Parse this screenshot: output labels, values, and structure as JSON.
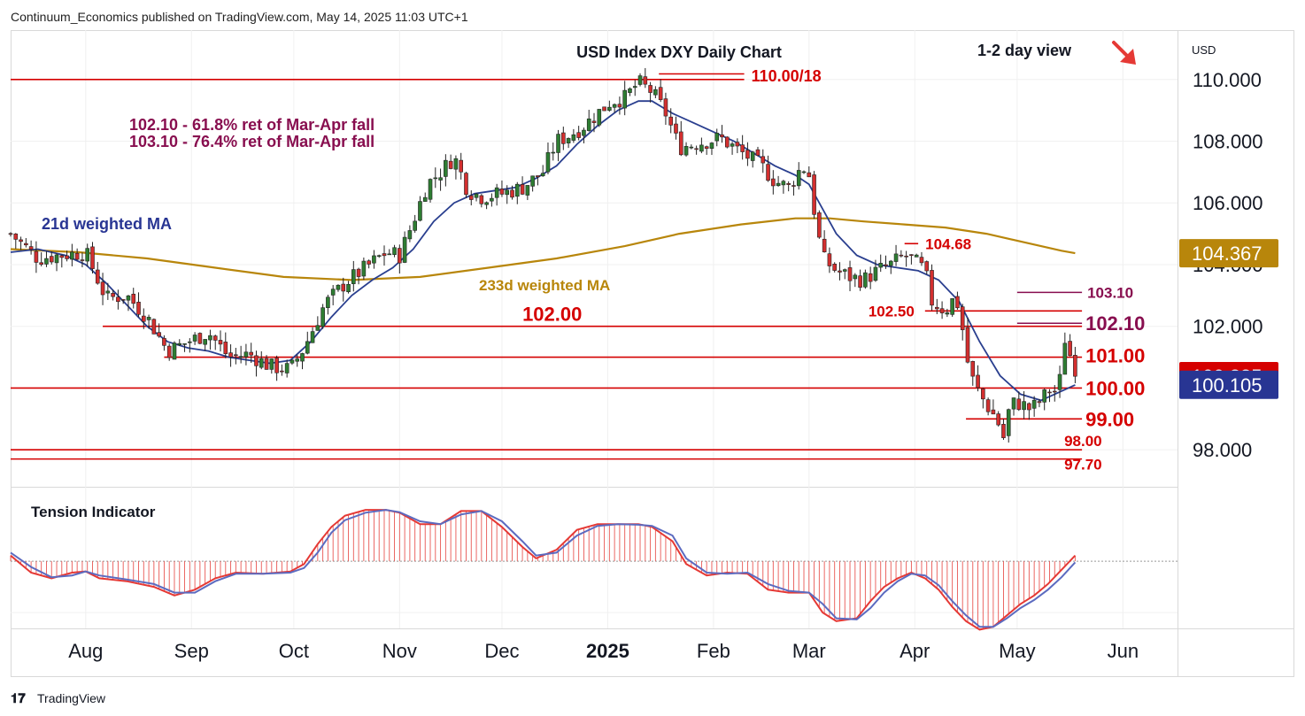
{
  "header": {
    "publisher": "Continuum_Economics published on TradingView.com, May 14, 2025 11:03 UTC+1"
  },
  "footer": {
    "brand": "TradingView"
  },
  "colors": {
    "up": "#2e7d32",
    "down": "#d32f2f",
    "level_line": "#d50000",
    "ret_line": "#880e4f",
    "ma21": "#2a3f8f",
    "ma233": "#b8860b",
    "tension_red": "#e53935",
    "tension_blue": "#5c6bc0",
    "price_tag_red": "#d50000",
    "price_tag_navy": "#283593",
    "price_tag_gold": "#b8860b"
  },
  "chart_data": {
    "type": "candlestick",
    "title": "USD Index DXY Daily Chart",
    "view_label": "1-2 day view",
    "view_arrow": "down-right-arrow",
    "currency": "USD",
    "y_ticks": [
      "110.000",
      "108.000",
      "106.000",
      "104.000",
      "102.000",
      "98.000"
    ],
    "y_tick_values": [
      110,
      108,
      106,
      104,
      102,
      98
    ],
    "ylim": [
      96.8,
      111.6
    ],
    "x_labels": [
      "Aug",
      "Sep",
      "Oct",
      "Nov",
      "Dec",
      "2025",
      "Feb",
      "Mar",
      "Apr",
      "May",
      "Jun"
    ],
    "x_label_days": [
      22,
      53,
      83,
      114,
      144,
      175,
      206,
      234,
      265,
      295,
      326
    ],
    "x_domain_days": [
      0,
      342
    ],
    "price_tags": [
      {
        "text": "104.367",
        "value": 104.367,
        "kind": "gold"
      },
      {
        "text": "100.385",
        "value": 100.385,
        "kind": "red"
      },
      {
        "text": "100.105",
        "value": 100.105,
        "kind": "navy"
      }
    ],
    "levels": [
      {
        "label": "110.00/18",
        "value": 110.0,
        "x_from": 0,
        "x_to": 215
      },
      {
        "label": "104.68",
        "value": 104.68,
        "x_from": 262,
        "x_to": 266
      },
      {
        "label": "103.10",
        "value": 103.1,
        "x_from": 295,
        "x_to": 314
      },
      {
        "label": "102.50",
        "value": 102.5,
        "x_from": 268,
        "x_to": 314
      },
      {
        "label": "102.10",
        "value": 102.1,
        "x_from": 295,
        "x_to": 314
      },
      {
        "label": "102.00",
        "value": 102.0,
        "x_from": 27,
        "x_to": 314
      },
      {
        "label": "101.00",
        "value": 101.0,
        "x_from": 45,
        "x_to": 314
      },
      {
        "label": "100.00",
        "value": 100.0,
        "x_from": 0,
        "x_to": 314
      },
      {
        "label": "99.00",
        "value": 99.0,
        "x_from": 280,
        "x_to": 314
      },
      {
        "label": "98.00",
        "value": 98.0,
        "x_from": 0,
        "x_to": 314
      },
      {
        "label": "97.70",
        "value": 97.7,
        "x_from": 0,
        "x_to": 314
      }
    ],
    "annotations": [
      "102.10 - 61.8% ret of Mar-Apr fall",
      "103.10 - 76.4% ret of Mar-Apr fall"
    ],
    "ma_labels": {
      "ma21": "21d weighted MA",
      "ma233": "233d weighted MA"
    },
    "close_path": [
      [
        0,
        105.0
      ],
      [
        8,
        104.2
      ],
      [
        14,
        104.3
      ],
      [
        22,
        104.4
      ],
      [
        28,
        102.9
      ],
      [
        34,
        103.0
      ],
      [
        40,
        102.3
      ],
      [
        46,
        101.2
      ],
      [
        52,
        101.5
      ],
      [
        58,
        101.8
      ],
      [
        64,
        101.0
      ],
      [
        70,
        101.1
      ],
      [
        76,
        100.7
      ],
      [
        82,
        100.6
      ],
      [
        86,
        101.3
      ],
      [
        92,
        102.7
      ],
      [
        98,
        103.4
      ],
      [
        104,
        103.9
      ],
      [
        110,
        104.4
      ],
      [
        114,
        104.3
      ],
      [
        118,
        105.4
      ],
      [
        122,
        106.6
      ],
      [
        126,
        107.0
      ],
      [
        130,
        107.5
      ],
      [
        134,
        106.4
      ],
      [
        138,
        106.2
      ],
      [
        144,
        106.3
      ],
      [
        150,
        106.5
      ],
      [
        156,
        107.0
      ],
      [
        160,
        108.0
      ],
      [
        164,
        108.2
      ],
      [
        168,
        108.5
      ],
      [
        172,
        108.9
      ],
      [
        176,
        109.3
      ],
      [
        180,
        109.4
      ],
      [
        184,
        109.9
      ],
      [
        188,
        109.6
      ],
      [
        192,
        108.9
      ],
      [
        196,
        107.8
      ],
      [
        200,
        107.9
      ],
      [
        204,
        108.0
      ],
      [
        208,
        108.1
      ],
      [
        212,
        107.8
      ],
      [
        216,
        107.5
      ],
      [
        220,
        107.2
      ],
      [
        224,
        106.7
      ],
      [
        228,
        106.5
      ],
      [
        232,
        107.2
      ],
      [
        234,
        106.9
      ],
      [
        236,
        105.4
      ],
      [
        238,
        104.2
      ],
      [
        242,
        103.8
      ],
      [
        246,
        103.6
      ],
      [
        250,
        103.5
      ],
      [
        254,
        103.8
      ],
      [
        258,
        104.0
      ],
      [
        262,
        104.3
      ],
      [
        265,
        104.1
      ],
      [
        268,
        103.8
      ],
      [
        270,
        102.8
      ],
      [
        274,
        102.5
      ],
      [
        277,
        103.0
      ],
      [
        279,
        101.9
      ],
      [
        281,
        100.5
      ],
      [
        284,
        99.8
      ],
      [
        287,
        99.3
      ],
      [
        289,
        99.0
      ],
      [
        291,
        98.4
      ],
      [
        293,
        99.5
      ],
      [
        296,
        99.5
      ],
      [
        299,
        99.3
      ],
      [
        302,
        99.6
      ],
      [
        305,
        100.0
      ],
      [
        307,
        99.8
      ],
      [
        309,
        101.6
      ],
      [
        311,
        100.9
      ],
      [
        312,
        100.38
      ]
    ],
    "ma21_path": [
      [
        0,
        104.4
      ],
      [
        8,
        104.5
      ],
      [
        16,
        104.3
      ],
      [
        22,
        104.0
      ],
      [
        28,
        103.4
      ],
      [
        34,
        102.7
      ],
      [
        40,
        102.0
      ],
      [
        46,
        101.5
      ],
      [
        52,
        101.3
      ],
      [
        58,
        101.2
      ],
      [
        64,
        101.0
      ],
      [
        70,
        100.9
      ],
      [
        76,
        100.8
      ],
      [
        82,
        100.9
      ],
      [
        88,
        101.5
      ],
      [
        94,
        102.3
      ],
      [
        100,
        103.0
      ],
      [
        106,
        103.5
      ],
      [
        112,
        103.9
      ],
      [
        118,
        104.5
      ],
      [
        124,
        105.4
      ],
      [
        130,
        106.0
      ],
      [
        136,
        106.3
      ],
      [
        142,
        106.4
      ],
      [
        148,
        106.5
      ],
      [
        154,
        106.8
      ],
      [
        160,
        107.2
      ],
      [
        166,
        107.9
      ],
      [
        172,
        108.5
      ],
      [
        178,
        109.0
      ],
      [
        184,
        109.3
      ],
      [
        188,
        109.3
      ],
      [
        194,
        108.9
      ],
      [
        200,
        108.6
      ],
      [
        206,
        108.3
      ],
      [
        212,
        108.0
      ],
      [
        218,
        107.6
      ],
      [
        224,
        107.2
      ],
      [
        230,
        106.9
      ],
      [
        234,
        106.6
      ],
      [
        238,
        105.8
      ],
      [
        242,
        105.0
      ],
      [
        248,
        104.3
      ],
      [
        254,
        104.0
      ],
      [
        260,
        103.9
      ],
      [
        266,
        103.8
      ],
      [
        272,
        103.5
      ],
      [
        278,
        102.8
      ],
      [
        284,
        101.5
      ],
      [
        290,
        100.4
      ],
      [
        296,
        99.8
      ],
      [
        302,
        99.6
      ],
      [
        306,
        99.8
      ],
      [
        310,
        100.0
      ],
      [
        312,
        100.1
      ]
    ],
    "ma233_path": [
      [
        0,
        104.5
      ],
      [
        20,
        104.4
      ],
      [
        40,
        104.2
      ],
      [
        60,
        103.9
      ],
      [
        80,
        103.6
      ],
      [
        100,
        103.5
      ],
      [
        120,
        103.6
      ],
      [
        140,
        103.9
      ],
      [
        160,
        104.2
      ],
      [
        180,
        104.6
      ],
      [
        196,
        105.0
      ],
      [
        214,
        105.3
      ],
      [
        230,
        105.5
      ],
      [
        240,
        105.5
      ],
      [
        250,
        105.4
      ],
      [
        262,
        105.3
      ],
      [
        274,
        105.2
      ],
      [
        286,
        105.0
      ],
      [
        298,
        104.7
      ],
      [
        308,
        104.45
      ],
      [
        312,
        104.37
      ]
    ],
    "tension_indicator": {
      "label": "Tension Indicator",
      "ylim": [
        -1.1,
        1.15
      ],
      "zero": 0,
      "red_path": [
        [
          0,
          0.1
        ],
        [
          6,
          -0.2
        ],
        [
          12,
          -0.3
        ],
        [
          18,
          -0.2
        ],
        [
          22,
          -0.18
        ],
        [
          26,
          -0.3
        ],
        [
          34,
          -0.35
        ],
        [
          42,
          -0.45
        ],
        [
          48,
          -0.6
        ],
        [
          54,
          -0.5
        ],
        [
          60,
          -0.3
        ],
        [
          66,
          -0.2
        ],
        [
          74,
          -0.22
        ],
        [
          82,
          -0.18
        ],
        [
          86,
          -0.05
        ],
        [
          90,
          0.3
        ],
        [
          94,
          0.6
        ],
        [
          98,
          0.8
        ],
        [
          104,
          0.9
        ],
        [
          110,
          0.9
        ],
        [
          114,
          0.85
        ],
        [
          120,
          0.65
        ],
        [
          126,
          0.65
        ],
        [
          132,
          0.88
        ],
        [
          138,
          0.88
        ],
        [
          144,
          0.6
        ],
        [
          150,
          0.25
        ],
        [
          154,
          0.05
        ],
        [
          160,
          0.2
        ],
        [
          166,
          0.55
        ],
        [
          172,
          0.65
        ],
        [
          178,
          0.65
        ],
        [
          184,
          0.65
        ],
        [
          188,
          0.6
        ],
        [
          194,
          0.35
        ],
        [
          198,
          -0.05
        ],
        [
          204,
          -0.25
        ],
        [
          210,
          -0.2
        ],
        [
          216,
          -0.22
        ],
        [
          222,
          -0.5
        ],
        [
          228,
          -0.55
        ],
        [
          234,
          -0.55
        ],
        [
          238,
          -0.9
        ],
        [
          242,
          -1.05
        ],
        [
          248,
          -1.0
        ],
        [
          252,
          -0.7
        ],
        [
          256,
          -0.45
        ],
        [
          260,
          -0.3
        ],
        [
          264,
          -0.2
        ],
        [
          268,
          -0.3
        ],
        [
          272,
          -0.5
        ],
        [
          276,
          -0.8
        ],
        [
          280,
          -1.05
        ],
        [
          284,
          -1.2
        ],
        [
          288,
          -1.15
        ],
        [
          292,
          -0.95
        ],
        [
          296,
          -0.75
        ],
        [
          300,
          -0.6
        ],
        [
          304,
          -0.4
        ],
        [
          308,
          -0.15
        ],
        [
          312,
          0.1
        ]
      ],
      "blue_path": [
        [
          0,
          0.15
        ],
        [
          6,
          -0.1
        ],
        [
          12,
          -0.28
        ],
        [
          18,
          -0.25
        ],
        [
          22,
          -0.18
        ],
        [
          26,
          -0.25
        ],
        [
          34,
          -0.32
        ],
        [
          42,
          -0.4
        ],
        [
          48,
          -0.55
        ],
        [
          54,
          -0.55
        ],
        [
          60,
          -0.35
        ],
        [
          66,
          -0.22
        ],
        [
          74,
          -0.22
        ],
        [
          82,
          -0.2
        ],
        [
          86,
          -0.12
        ],
        [
          90,
          0.15
        ],
        [
          94,
          0.5
        ],
        [
          98,
          0.72
        ],
        [
          104,
          0.85
        ],
        [
          110,
          0.9
        ],
        [
          114,
          0.86
        ],
        [
          120,
          0.7
        ],
        [
          126,
          0.65
        ],
        [
          132,
          0.82
        ],
        [
          138,
          0.88
        ],
        [
          144,
          0.7
        ],
        [
          150,
          0.35
        ],
        [
          154,
          0.1
        ],
        [
          160,
          0.15
        ],
        [
          166,
          0.45
        ],
        [
          172,
          0.62
        ],
        [
          178,
          0.65
        ],
        [
          184,
          0.64
        ],
        [
          188,
          0.62
        ],
        [
          194,
          0.45
        ],
        [
          198,
          0.05
        ],
        [
          204,
          -0.2
        ],
        [
          210,
          -0.22
        ],
        [
          216,
          -0.2
        ],
        [
          222,
          -0.4
        ],
        [
          228,
          -0.52
        ],
        [
          234,
          -0.55
        ],
        [
          238,
          -0.75
        ],
        [
          242,
          -1.0
        ],
        [
          248,
          -1.02
        ],
        [
          252,
          -0.82
        ],
        [
          256,
          -0.55
        ],
        [
          260,
          -0.35
        ],
        [
          264,
          -0.22
        ],
        [
          268,
          -0.25
        ],
        [
          272,
          -0.42
        ],
        [
          276,
          -0.7
        ],
        [
          280,
          -0.95
        ],
        [
          284,
          -1.15
        ],
        [
          288,
          -1.15
        ],
        [
          292,
          -1.0
        ],
        [
          296,
          -0.82
        ],
        [
          300,
          -0.68
        ],
        [
          304,
          -0.5
        ],
        [
          308,
          -0.28
        ],
        [
          312,
          -0.02
        ]
      ]
    }
  }
}
